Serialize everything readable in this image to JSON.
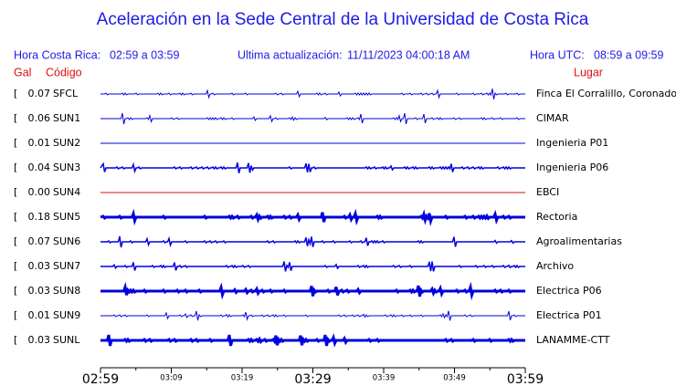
{
  "header": {
    "title": "Aceleración en la Sede Central de la Universidad de Costa Rica",
    "local_label": "Hora Costa Rica:",
    "local_range": "02:59 a 03:59",
    "update_label": "Ultima actualización:",
    "update_value": "11/11/2023 04:00:18 AM",
    "utc_label": "Hora UTC:",
    "utc_range": "08:59 a 09:59",
    "col_gal": "Gal",
    "col_code": "Código",
    "col_place": "Lugar"
  },
  "stations": [
    {
      "gal": "0.07",
      "code": "SFCL",
      "place": "Finca El Corralillo, Coronado",
      "color": "#0000e0"
    },
    {
      "gal": "0.06",
      "code": "SUN1",
      "place": "CIMAR",
      "color": "#0000e0"
    },
    {
      "gal": "0.01",
      "code": "SUN2",
      "place": "Ingenieria P01",
      "color": "#0000e0"
    },
    {
      "gal": "0.04",
      "code": "SUN3",
      "place": "Ingenieria P06",
      "color": "#0000e0"
    },
    {
      "gal": "0.00",
      "code": "SUN4",
      "place": "EBCI",
      "color": "#d01010"
    },
    {
      "gal": "0.18",
      "code": "SUN5",
      "place": "Rectoria",
      "color": "#0000e0"
    },
    {
      "gal": "0.07",
      "code": "SUN6",
      "place": "Agroalimentarias",
      "color": "#0000e0"
    },
    {
      "gal": "0.03",
      "code": "SUN7",
      "place": "Archivo",
      "color": "#0000e0"
    },
    {
      "gal": "0.03",
      "code": "SUN8",
      "place": "Electrica P06",
      "color": "#0000e0"
    },
    {
      "gal": "0.01",
      "code": "SUN9",
      "place": "Electrica P01",
      "color": "#0000e0"
    },
    {
      "gal": "0.03",
      "code": "SUNL",
      "place": "LANAMME-CTT",
      "color": "#0000e0"
    }
  ],
  "time_axis": {
    "major": [
      "02:59",
      "03:29",
      "03:59"
    ],
    "minor": [
      "03:09",
      "03:19",
      "03:39",
      "03:49"
    ]
  }
}
